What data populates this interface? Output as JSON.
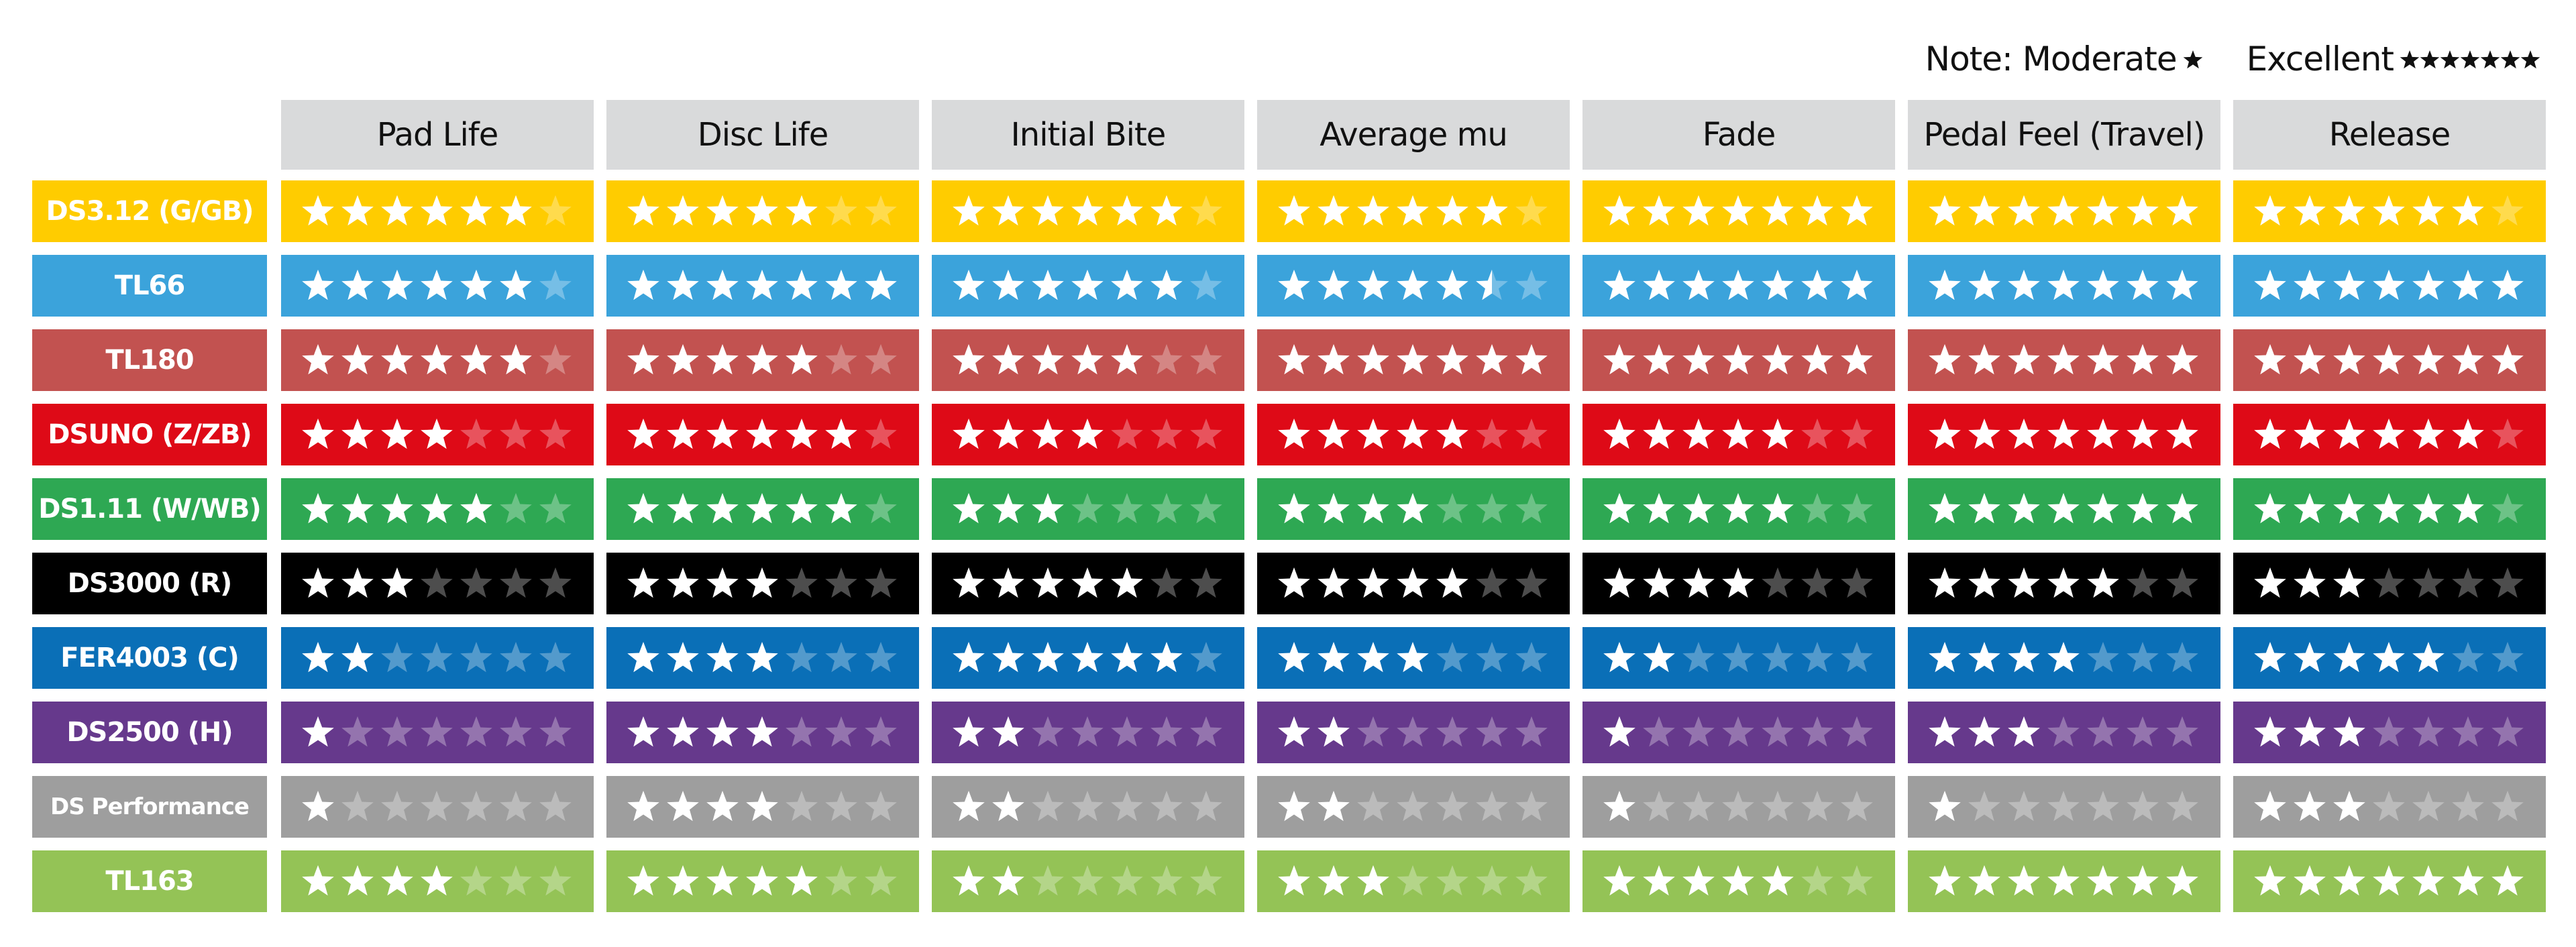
{
  "legend": {
    "note_label": "Note:",
    "moderate_label": "Moderate",
    "moderate_stars": 1,
    "excellent_label": "Excellent",
    "excellent_stars": 7
  },
  "chart_data": {
    "type": "table",
    "max_stars": 7,
    "columns": [
      "Pad Life",
      "Disc Life",
      "Initial Bite",
      "Average mu",
      "Fade",
      "Pedal Feel (Travel)",
      "Release"
    ],
    "rows": [
      {
        "name": "DS3.12 (G/GB)",
        "color": "#FFCC00",
        "values": [
          6,
          5,
          6,
          6,
          7,
          7,
          6
        ]
      },
      {
        "name": "TL66",
        "color": "#3BA3DB",
        "values": [
          6,
          7,
          6,
          5.5,
          7,
          7,
          7
        ]
      },
      {
        "name": "TL180",
        "color": "#C25250",
        "values": [
          6,
          5,
          5,
          7,
          7,
          7,
          7
        ]
      },
      {
        "name": "DSUNO (Z/ZB)",
        "color": "#DE0A17",
        "values": [
          4,
          6,
          4,
          5,
          5,
          7,
          6
        ]
      },
      {
        "name": "DS1.11 (W/WB)",
        "color": "#2EA853",
        "values": [
          5,
          6,
          3,
          4,
          5,
          7,
          6
        ]
      },
      {
        "name": "DS3000 (R)",
        "color": "#000000",
        "values": [
          3,
          4,
          5,
          5,
          4,
          5,
          3
        ]
      },
      {
        "name": "FER4003 (C)",
        "color": "#0A6FB7",
        "values": [
          2,
          4,
          6,
          4,
          2,
          4,
          5
        ]
      },
      {
        "name": "DS2500 (H)",
        "color": "#66398C",
        "values": [
          1,
          4,
          2,
          2,
          1,
          3,
          3
        ]
      },
      {
        "name": "DS Performance",
        "color": "#9E9E9E",
        "values": [
          1,
          4,
          2,
          2,
          1,
          1,
          3
        ]
      },
      {
        "name": "TL163",
        "color": "#94C356",
        "values": [
          4,
          5,
          2,
          3,
          5,
          7,
          7
        ]
      }
    ]
  }
}
